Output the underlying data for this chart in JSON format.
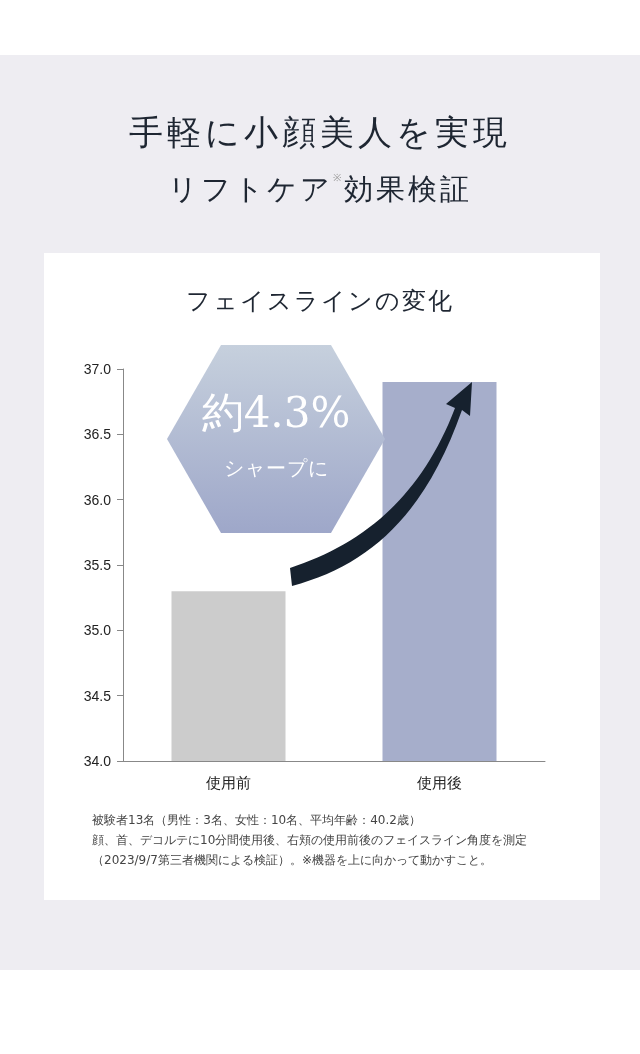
{
  "chart_data": {
    "type": "bar",
    "title": "手軽に小顔美人を実現",
    "subtitle": "リフトケア$^{※}$効果検証",
    "legend_title": "フェイスラインの変化",
    "categories": [
      "使用前",
      "使用後"
    ],
    "values": [
      35.3,
      36.9
    ],
    "colors": [
      "#cccccc",
      "#a6aecb"
    ],
    "ylim": [
      34,
      37
    ],
    "yticks": [
      {
        "value": 34,
        "label": "34.0"
      },
      {
        "value": 34.5,
        "label": "34.5"
      },
      {
        "value": 35,
        "label": "35.0"
      },
      {
        "value": 35.5,
        "label": "35.5"
      },
      {
        "value": 36,
        "label": "36.0"
      },
      {
        "value": 36.5,
        "label": "36.5"
      },
      {
        "value": 37,
        "label": "37.0"
      }
    ],
    "grid": false,
    "annotations": [
      "約4.3%",
      "シャープに",
      "被験者13名（男性：3名、女性：10名、平均年齢：40.2歳）",
      "顔、首、デコルテに10分間使用後、右頬の使用前後のフェイスライン角度を測定（2023/9/7第三者機関による検証）。※機器を上に向かって動かすこと。"
    ]
  }
}
